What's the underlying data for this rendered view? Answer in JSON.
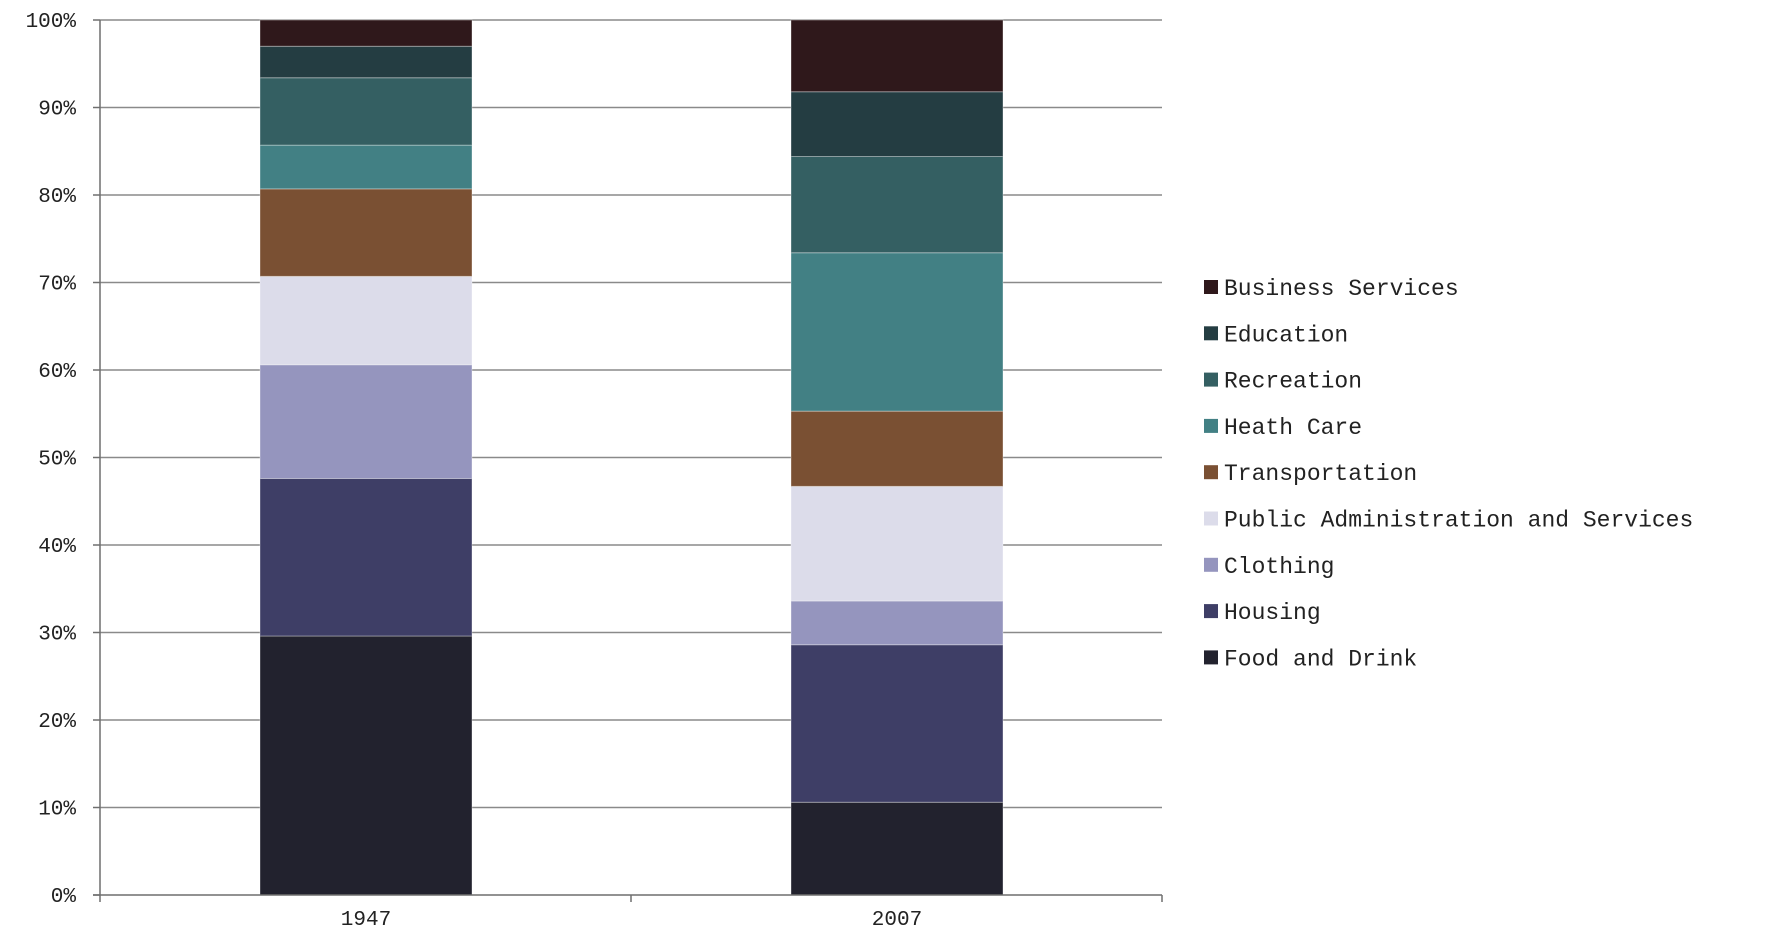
{
  "chart_data": {
    "type": "bar",
    "stacked": true,
    "percent": true,
    "categories": [
      "1947",
      "2007"
    ],
    "ylim": [
      0,
      100
    ],
    "yticks": [
      "0%",
      "10%",
      "20%",
      "30%",
      "40%",
      "50%",
      "60%",
      "70%",
      "80%",
      "90%",
      "100%"
    ],
    "grid": true,
    "legend_position": "right",
    "series": [
      {
        "name": "Food and Drink",
        "color": "#22222e",
        "values": [
          29.6,
          10.6
        ]
      },
      {
        "name": "Housing",
        "color": "#3e3e66",
        "values": [
          18.0,
          18.0
        ]
      },
      {
        "name": "Clothing",
        "color": "#9595be",
        "values": [
          13.0,
          5.0
        ]
      },
      {
        "name": "Public Administration and Services",
        "color": "#dcdcea",
        "values": [
          10.1,
          13.1
        ]
      },
      {
        "name": "Transportation",
        "color": "#7a5033",
        "values": [
          10.0,
          8.6
        ]
      },
      {
        "name": "Heath Care",
        "color": "#428084",
        "values": [
          5.0,
          18.1
        ]
      },
      {
        "name": "Recreation",
        "color": "#345f62",
        "values": [
          7.7,
          11.0
        ]
      },
      {
        "name": "Education",
        "color": "#243d42",
        "values": [
          3.6,
          7.4
        ]
      },
      {
        "name": "Business Services",
        "color": "#2f181b",
        "values": [
          3.0,
          8.2
        ]
      }
    ]
  }
}
